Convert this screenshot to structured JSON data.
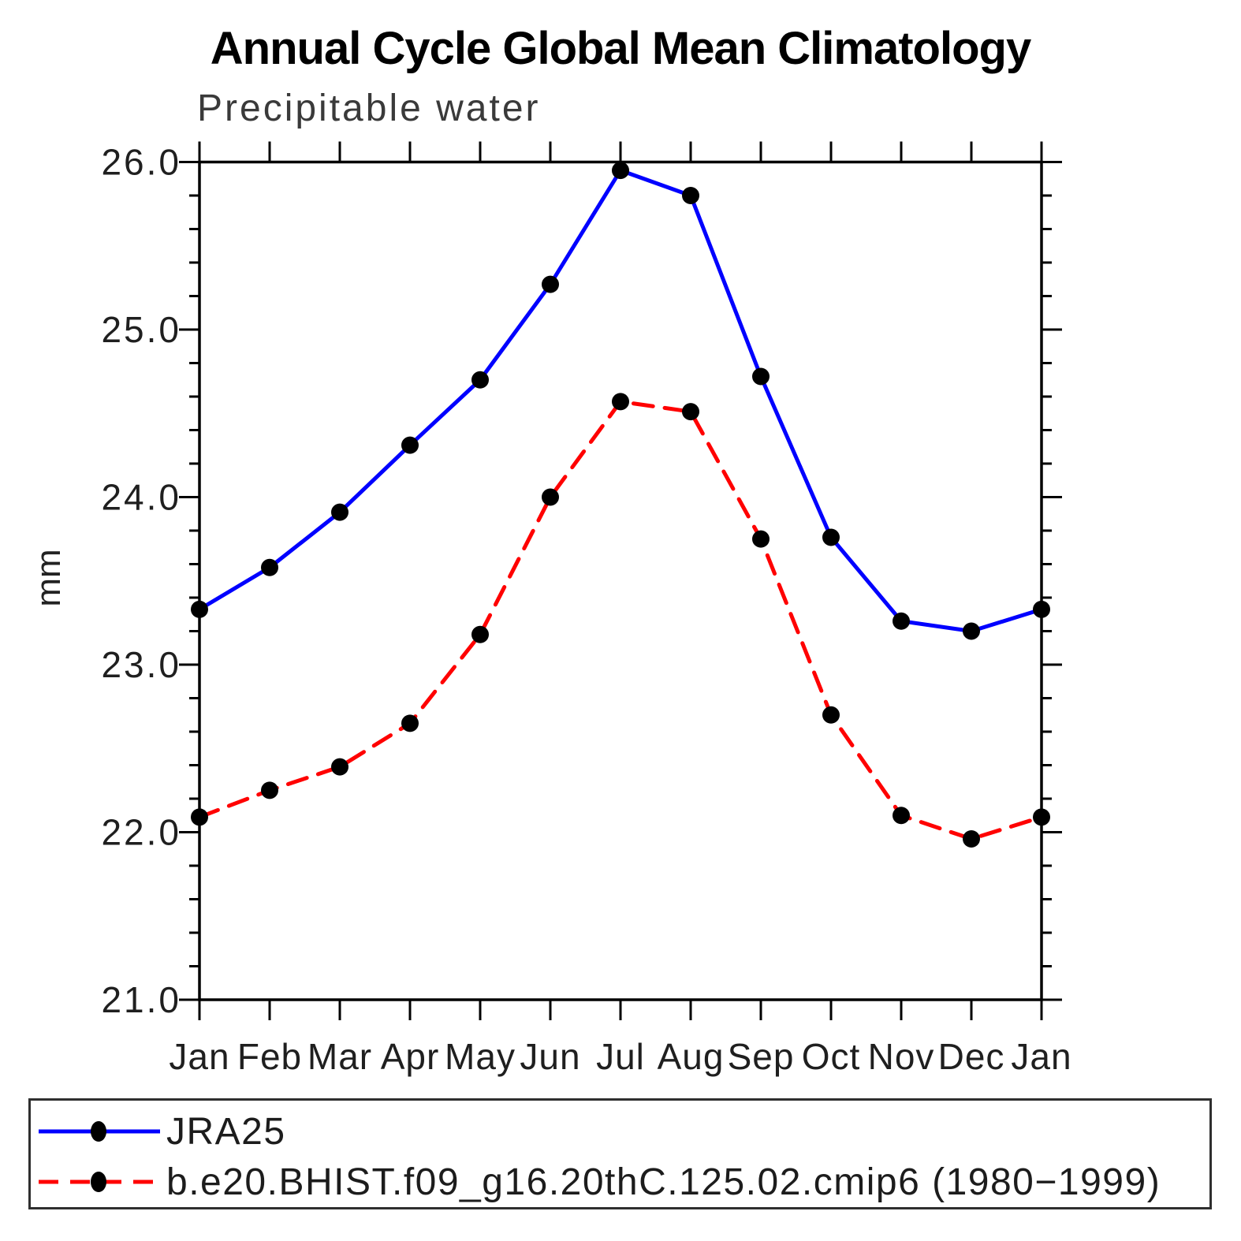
{
  "title": "Annual Cycle Global Mean Climatology",
  "subtitle": "Precipitable water",
  "ylabel": "mm",
  "legend": {
    "entries": [
      {
        "label": "JRA25",
        "color": "#0000ff",
        "line_style": "solid",
        "marker": "black-dot"
      },
      {
        "label": "b.e20.BHIST.f09_g16.20thC.125.02.cmip6 (1980−1999)",
        "color": "#ff0000",
        "line_style": "dashed",
        "marker": "black-dot"
      }
    ],
    "position": "bottom"
  },
  "chart_data": {
    "type": "line",
    "title": "Annual Cycle Global Mean Climatology",
    "subtitle": "Precipitable water",
    "xlabel": "",
    "ylabel": "mm",
    "categories": [
      "Jan",
      "Feb",
      "Mar",
      "Apr",
      "May",
      "Jun",
      "Jul",
      "Aug",
      "Sep",
      "Oct",
      "Nov",
      "Dec",
      "Jan"
    ],
    "series": [
      {
        "name": "JRA25",
        "color": "#0000ff",
        "line_style": "solid",
        "marker": "black-circle",
        "values": [
          23.33,
          23.58,
          23.91,
          24.31,
          24.7,
          25.27,
          25.95,
          25.8,
          24.72,
          23.76,
          23.26,
          23.2,
          23.33
        ]
      },
      {
        "name": "b.e20.BHIST.f09_g16.20thC.125.02.cmip6 (1980−1999)",
        "color": "#ff0000",
        "line_style": "dashed",
        "marker": "black-circle",
        "values": [
          22.09,
          22.25,
          22.39,
          22.65,
          23.18,
          24.0,
          24.57,
          24.51,
          23.75,
          22.7,
          22.1,
          21.96,
          22.09
        ]
      }
    ],
    "ylim": [
      21.0,
      26.0
    ],
    "yticks": [
      21.0,
      22.0,
      23.0,
      24.0,
      25.0,
      26.0
    ],
    "ytick_labels": [
      "21.0",
      "22.0",
      "23.0",
      "24.0",
      "25.0",
      "26.0"
    ],
    "y_minor_tick_step": 0.2,
    "grid": false,
    "tick_direction": "out",
    "frame": "all-four-sides",
    "legend_position": "bottom"
  }
}
